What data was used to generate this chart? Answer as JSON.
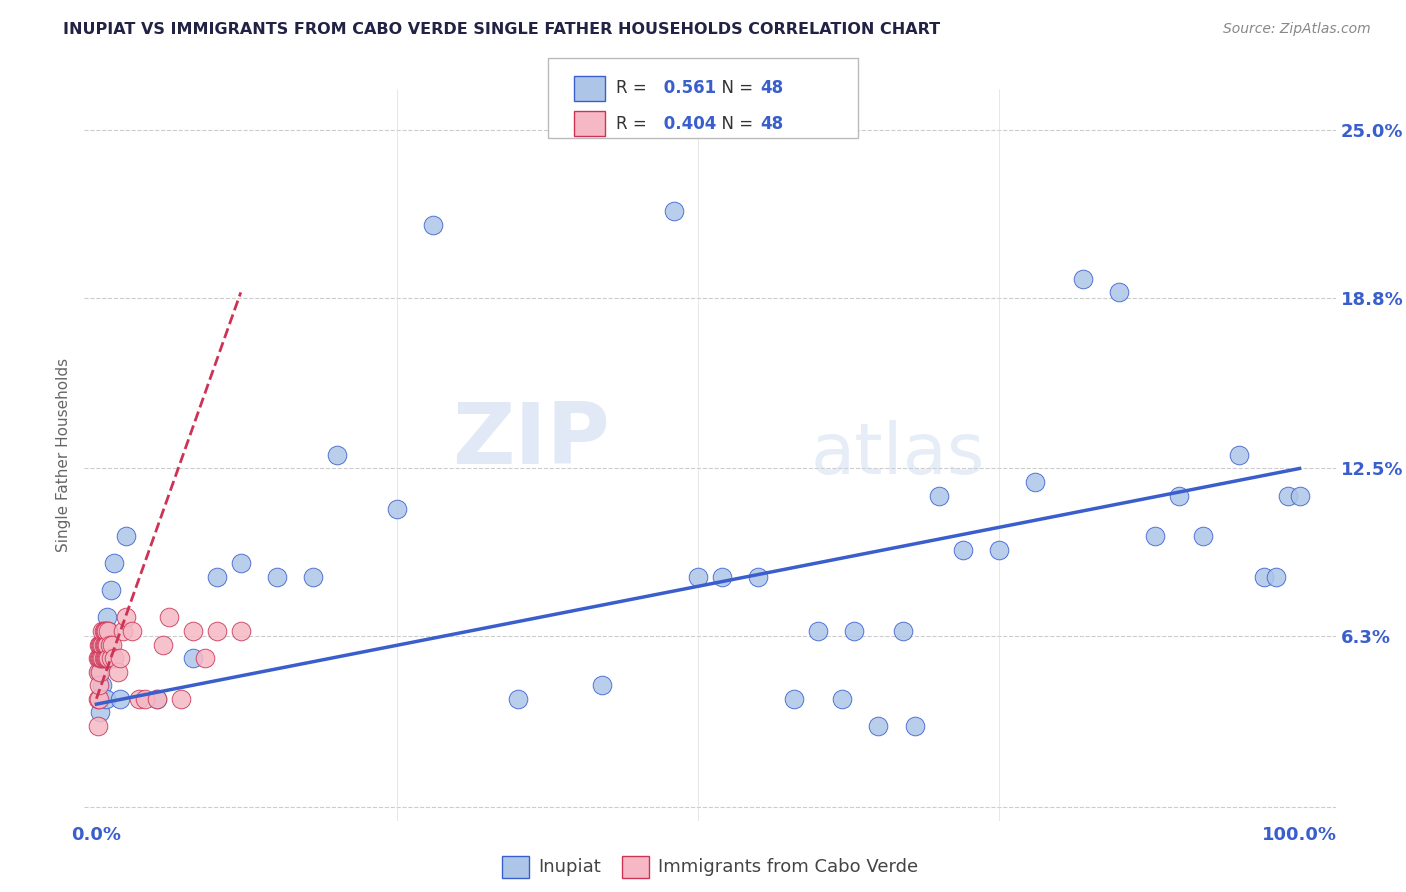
{
  "title": "INUPIAT VS IMMIGRANTS FROM CABO VERDE SINGLE FATHER HOUSEHOLDS CORRELATION CHART",
  "source": "Source: ZipAtlas.com",
  "ylabel": "Single Father Households",
  "legend_label1": "Inupiat",
  "legend_label2": "Immigrants from Cabo Verde",
  "R1": 0.561,
  "R2": 0.404,
  "N1": 48,
  "N2": 48,
  "color_blue": "#adc6e8",
  "color_pink": "#f5b8c4",
  "line_blue": "#3a5fcd",
  "line_pink": "#cc3355",
  "watermark_zip": "ZIP",
  "watermark_atlas": "atlas",
  "ylabel_ticks": [
    0.0,
    0.063,
    0.125,
    0.188,
    0.25
  ],
  "ylabel_labels": [
    "",
    "6.3%",
    "12.5%",
    "18.8%",
    "25.0%"
  ],
  "blue_x": [
    0.002,
    0.003,
    0.004,
    0.005,
    0.007,
    0.008,
    0.009,
    0.01,
    0.012,
    0.015,
    0.02,
    0.025,
    0.05,
    0.08,
    0.1,
    0.12,
    0.15,
    0.18,
    0.2,
    0.25,
    0.28,
    0.35,
    0.42,
    0.48,
    0.5,
    0.52,
    0.55,
    0.58,
    0.62,
    0.65,
    0.68,
    0.7,
    0.72,
    0.75,
    0.78,
    0.82,
    0.85,
    0.88,
    0.9,
    0.92,
    0.95,
    0.97,
    0.98,
    0.99,
    1.0,
    0.6,
    0.63,
    0.67
  ],
  "blue_y": [
    0.05,
    0.035,
    0.06,
    0.045,
    0.055,
    0.04,
    0.07,
    0.065,
    0.08,
    0.09,
    0.04,
    0.1,
    0.04,
    0.055,
    0.085,
    0.09,
    0.085,
    0.085,
    0.13,
    0.11,
    0.215,
    0.04,
    0.045,
    0.22,
    0.085,
    0.085,
    0.085,
    0.04,
    0.04,
    0.03,
    0.03,
    0.115,
    0.095,
    0.095,
    0.12,
    0.195,
    0.19,
    0.1,
    0.115,
    0.1,
    0.13,
    0.085,
    0.085,
    0.115,
    0.115,
    0.065,
    0.065,
    0.065
  ],
  "pink_x": [
    0.001,
    0.001,
    0.001,
    0.001,
    0.002,
    0.002,
    0.002,
    0.002,
    0.003,
    0.003,
    0.003,
    0.004,
    0.004,
    0.005,
    0.005,
    0.005,
    0.006,
    0.006,
    0.006,
    0.007,
    0.007,
    0.007,
    0.008,
    0.008,
    0.008,
    0.009,
    0.009,
    0.01,
    0.01,
    0.011,
    0.012,
    0.013,
    0.015,
    0.018,
    0.02,
    0.022,
    0.025,
    0.03,
    0.035,
    0.04,
    0.05,
    0.055,
    0.06,
    0.07,
    0.08,
    0.09,
    0.1,
    0.12
  ],
  "pink_y": [
    0.03,
    0.04,
    0.05,
    0.055,
    0.04,
    0.045,
    0.055,
    0.06,
    0.05,
    0.055,
    0.06,
    0.055,
    0.06,
    0.055,
    0.06,
    0.065,
    0.055,
    0.06,
    0.065,
    0.055,
    0.06,
    0.065,
    0.055,
    0.06,
    0.065,
    0.055,
    0.06,
    0.055,
    0.065,
    0.06,
    0.055,
    0.06,
    0.055,
    0.05,
    0.055,
    0.065,
    0.07,
    0.065,
    0.04,
    0.04,
    0.04,
    0.06,
    0.07,
    0.04,
    0.065,
    0.055,
    0.065,
    0.065
  ]
}
